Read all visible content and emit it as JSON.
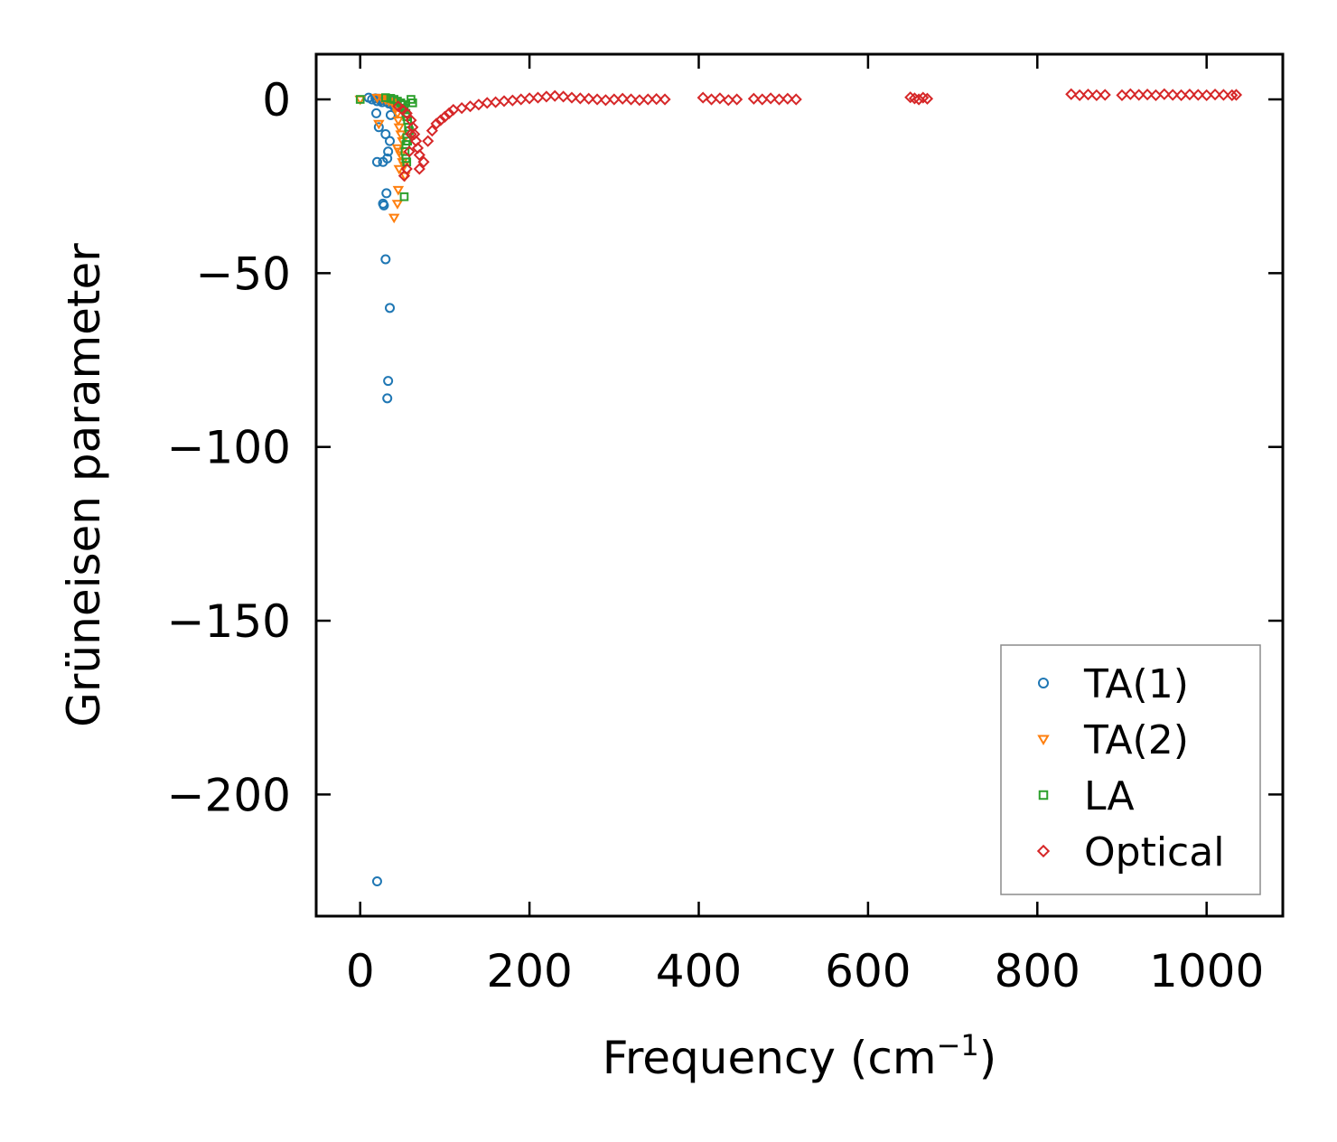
{
  "chart_data": {
    "type": "scatter",
    "title": "",
    "xlabel": "Frequency (cm",
    "xlabel_superscript": "−1",
    "xlabel_suffix": ")",
    "ylabel": "Grüneisen parameter",
    "xlim": [
      -52,
      1090
    ],
    "ylim": [
      -235,
      13
    ],
    "xticks": [
      0,
      200,
      400,
      600,
      800,
      1000
    ],
    "xtick_labels": [
      "0",
      "200",
      "400",
      "600",
      "800",
      "1000"
    ],
    "yticks": [
      0,
      -50,
      -100,
      -150,
      -200
    ],
    "ytick_labels": [
      "0",
      "−50",
      "−100",
      "−150",
      "−200"
    ],
    "grid": false,
    "legend_position": "bottom-right",
    "series": [
      {
        "name": "TA(1)",
        "marker": "circle",
        "color": "#1f77b4",
        "points": [
          [
            10,
            0.5
          ],
          [
            14,
            0
          ],
          [
            18,
            0.3
          ],
          [
            20,
            -0.5
          ],
          [
            22,
            0.2
          ],
          [
            24,
            -0.3
          ],
          [
            26,
            -0.8
          ],
          [
            28,
            -0.2
          ],
          [
            30,
            0
          ],
          [
            32,
            -0.6
          ],
          [
            34,
            -1.2
          ],
          [
            36,
            -0.4
          ],
          [
            38,
            -1.5
          ],
          [
            40,
            -2
          ],
          [
            19,
            -4
          ],
          [
            36,
            -4.5
          ],
          [
            22,
            -8
          ],
          [
            30,
            -10
          ],
          [
            35,
            -12
          ],
          [
            33,
            -15
          ],
          [
            32,
            -17
          ],
          [
            20,
            -18
          ],
          [
            27,
            -18
          ],
          [
            31,
            -27
          ],
          [
            27,
            -30
          ],
          [
            28,
            -30.5
          ],
          [
            30,
            -46
          ],
          [
            35,
            -60
          ],
          [
            33,
            -81
          ],
          [
            32,
            -86
          ],
          [
            20,
            -225
          ]
        ]
      },
      {
        "name": "TA(2)",
        "marker": "triangle-down",
        "color": "#ff7f0e",
        "points": [
          [
            0,
            0
          ],
          [
            20,
            0.5
          ],
          [
            26,
            0.3
          ],
          [
            30,
            0
          ],
          [
            34,
            -0.5
          ],
          [
            38,
            -0.8
          ],
          [
            40,
            -1.5
          ],
          [
            42,
            -2.5
          ],
          [
            44,
            -4
          ],
          [
            45,
            -6
          ],
          [
            46,
            -8
          ],
          [
            48,
            -10
          ],
          [
            50,
            -12
          ],
          [
            44,
            -14
          ],
          [
            46,
            -15
          ],
          [
            48,
            -16
          ],
          [
            50,
            -18
          ],
          [
            52,
            -19
          ],
          [
            46,
            -20
          ],
          [
            53,
            -22
          ],
          [
            45,
            -26
          ],
          [
            44,
            -30
          ],
          [
            40,
            -34
          ],
          [
            22,
            -7
          ]
        ]
      },
      {
        "name": "LA",
        "marker": "square",
        "color": "#2ca02c",
        "points": [
          [
            0,
            0
          ],
          [
            30,
            0.5
          ],
          [
            36,
            0.3
          ],
          [
            40,
            0
          ],
          [
            44,
            -0.5
          ],
          [
            48,
            -1
          ],
          [
            50,
            -1.5
          ],
          [
            52,
            -2.5
          ],
          [
            54,
            -4
          ],
          [
            55,
            -5
          ],
          [
            56,
            -6
          ],
          [
            57,
            -8
          ],
          [
            58,
            -9
          ],
          [
            55,
            -11
          ],
          [
            56,
            -12
          ],
          [
            54,
            -13
          ],
          [
            53,
            -15
          ],
          [
            54,
            -17
          ],
          [
            55,
            -18
          ],
          [
            52,
            -28
          ],
          [
            60,
            0
          ],
          [
            62,
            -1
          ]
        ]
      },
      {
        "name": "Optical",
        "marker": "diamond",
        "color": "#d62728",
        "points": [
          [
            45,
            -2
          ],
          [
            50,
            -3
          ],
          [
            55,
            -4
          ],
          [
            60,
            -6
          ],
          [
            62,
            -8
          ],
          [
            64,
            -10
          ],
          [
            66,
            -12
          ],
          [
            68,
            -14
          ],
          [
            70,
            -16
          ],
          [
            60,
            -10
          ],
          [
            58,
            -15
          ],
          [
            55,
            -20
          ],
          [
            52,
            -22
          ],
          [
            70,
            -20
          ],
          [
            75,
            -18
          ],
          [
            80,
            -12
          ],
          [
            85,
            -9
          ],
          [
            90,
            -7
          ],
          [
            95,
            -6
          ],
          [
            100,
            -5
          ],
          [
            105,
            -4
          ],
          [
            110,
            -3
          ],
          [
            120,
            -2.5
          ],
          [
            130,
            -2
          ],
          [
            140,
            -1.5
          ],
          [
            150,
            -1
          ],
          [
            160,
            -0.8
          ],
          [
            170,
            -0.5
          ],
          [
            180,
            -0.3
          ],
          [
            190,
            0
          ],
          [
            200,
            0.3
          ],
          [
            210,
            0.5
          ],
          [
            220,
            0.8
          ],
          [
            230,
            1
          ],
          [
            240,
            0.8
          ],
          [
            250,
            0.5
          ],
          [
            260,
            0.3
          ],
          [
            270,
            0.2
          ],
          [
            280,
            0
          ],
          [
            290,
            -0.2
          ],
          [
            300,
            0
          ],
          [
            310,
            0.2
          ],
          [
            320,
            0
          ],
          [
            330,
            -0.2
          ],
          [
            340,
            0
          ],
          [
            350,
            0.1
          ],
          [
            360,
            0
          ],
          [
            405,
            0.5
          ],
          [
            415,
            0
          ],
          [
            425,
            0.3
          ],
          [
            435,
            -0.2
          ],
          [
            445,
            0
          ],
          [
            465,
            0.2
          ],
          [
            475,
            0
          ],
          [
            485,
            0.3
          ],
          [
            495,
            0
          ],
          [
            505,
            0.2
          ],
          [
            515,
            0
          ],
          [
            650,
            0.6
          ],
          [
            655,
            0.3
          ],
          [
            660,
            0
          ],
          [
            665,
            0.5
          ],
          [
            670,
            0.2
          ],
          [
            840,
            1.5
          ],
          [
            850,
            1.2
          ],
          [
            860,
            1.4
          ],
          [
            870,
            1.2
          ],
          [
            880,
            1.3
          ],
          [
            900,
            1.2
          ],
          [
            910,
            1.5
          ],
          [
            920,
            1.3
          ],
          [
            930,
            1.4
          ],
          [
            940,
            1.2
          ],
          [
            950,
            1.5
          ],
          [
            960,
            1.3
          ],
          [
            970,
            1.2
          ],
          [
            980,
            1.4
          ],
          [
            990,
            1.3
          ],
          [
            1000,
            1.2
          ],
          [
            1010,
            1.4
          ],
          [
            1020,
            1.3
          ],
          [
            1030,
            1.2
          ],
          [
            1035,
            1.3
          ]
        ]
      }
    ]
  }
}
